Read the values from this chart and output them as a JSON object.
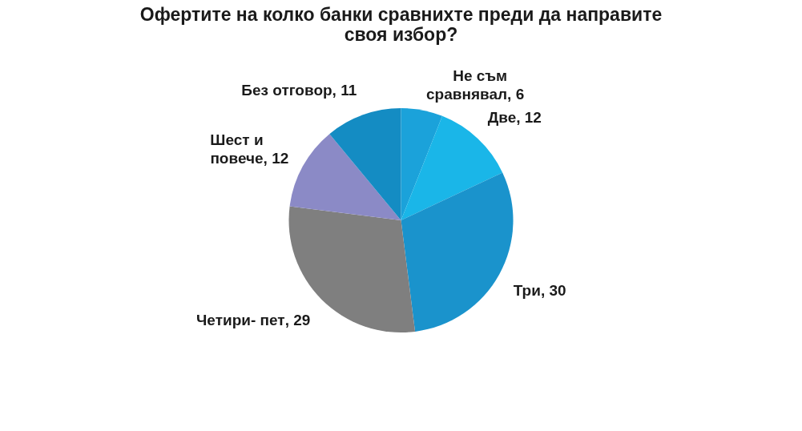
{
  "chart_data": {
    "type": "pie",
    "title": "Офертите на колко банки сравнихте преди да направите своя избор?",
    "categories": [
      "Не съм сравнявал",
      "Две",
      "Три",
      "Четири- пет",
      "Шест и повече",
      "Без отговор"
    ],
    "values": [
      6,
      12,
      30,
      29,
      12,
      11
    ],
    "value_labels": [
      ", 6",
      ", 12",
      ", 30",
      ", 29",
      ", 12",
      ", 11"
    ],
    "colors": [
      "#1ba2da",
      "#1ab6e8",
      "#1a93cc",
      "#7f7f7f",
      "#8b8ac6",
      "#148cc3"
    ]
  }
}
